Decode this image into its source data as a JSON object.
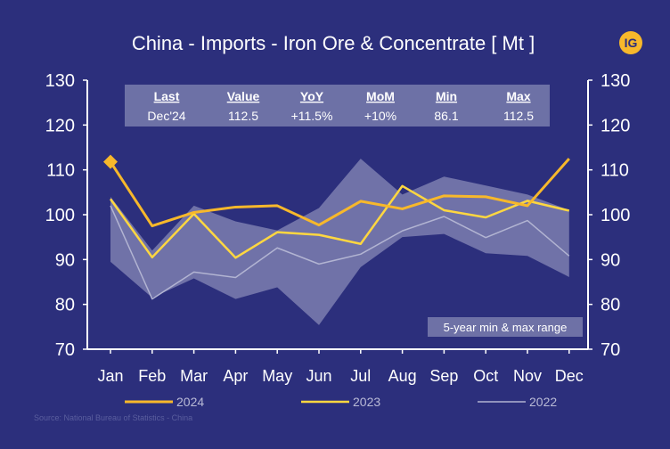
{
  "chart_data": {
    "type": "line",
    "title": "China - Imports - Iron Ore & Concentrate [ Mt ]",
    "categories": [
      "Jan",
      "Feb",
      "Mar",
      "Apr",
      "May",
      "Jun",
      "Jul",
      "Aug",
      "Sep",
      "Oct",
      "Nov",
      "Dec"
    ],
    "ylim": [
      70,
      130
    ],
    "yticks": [
      70,
      80,
      90,
      100,
      110,
      120,
      130
    ],
    "grid": false,
    "series": [
      {
        "name": "2024",
        "color": "#f7b82b",
        "values": [
          111.8,
          97.5,
          100.5,
          101.7,
          102,
          97.7,
          103,
          101.3,
          104.2,
          104,
          102,
          112.5
        ]
      },
      {
        "name": "2023",
        "color": "#ffd740",
        "values": [
          103.5,
          90.5,
          100.2,
          90.4,
          96.1,
          95.5,
          93.5,
          106.4,
          101,
          99.4,
          103.1,
          100.9
        ]
      },
      {
        "name": "2022",
        "color": "#b2b4d2",
        "values": [
          102,
          81.2,
          87.2,
          86,
          92.6,
          89,
          91.2,
          96.4,
          99.6,
          94.9,
          98.7,
          90.8
        ]
      }
    ],
    "range": {
      "label": "5-year min & max range",
      "max": [
        104,
        92,
        102,
        98.5,
        96.5,
        101.5,
        112.5,
        104.5,
        108.5,
        106.5,
        104.5,
        101
      ],
      "min": [
        89.5,
        81.5,
        85.8,
        81.2,
        83.8,
        75.4,
        88.3,
        95,
        95.7,
        91.4,
        90.8,
        86.1
      ]
    },
    "start_marker": {
      "series": "2024",
      "category": "Jan",
      "value": 111.8
    },
    "stats": {
      "headers": [
        "Last",
        "Value",
        "YoY",
        "MoM",
        "Min",
        "Max"
      ],
      "values": [
        "Dec'24",
        "112.5",
        "+11.5%",
        "+10%",
        "86.1",
        "112.5"
      ]
    },
    "legend": [
      "2024",
      "2023",
      "2022"
    ],
    "legend_position": "bottom",
    "source": "Source: National Bureau of Statistics - China"
  },
  "logo": {
    "text": "IG",
    "color": "#f7b82b"
  }
}
